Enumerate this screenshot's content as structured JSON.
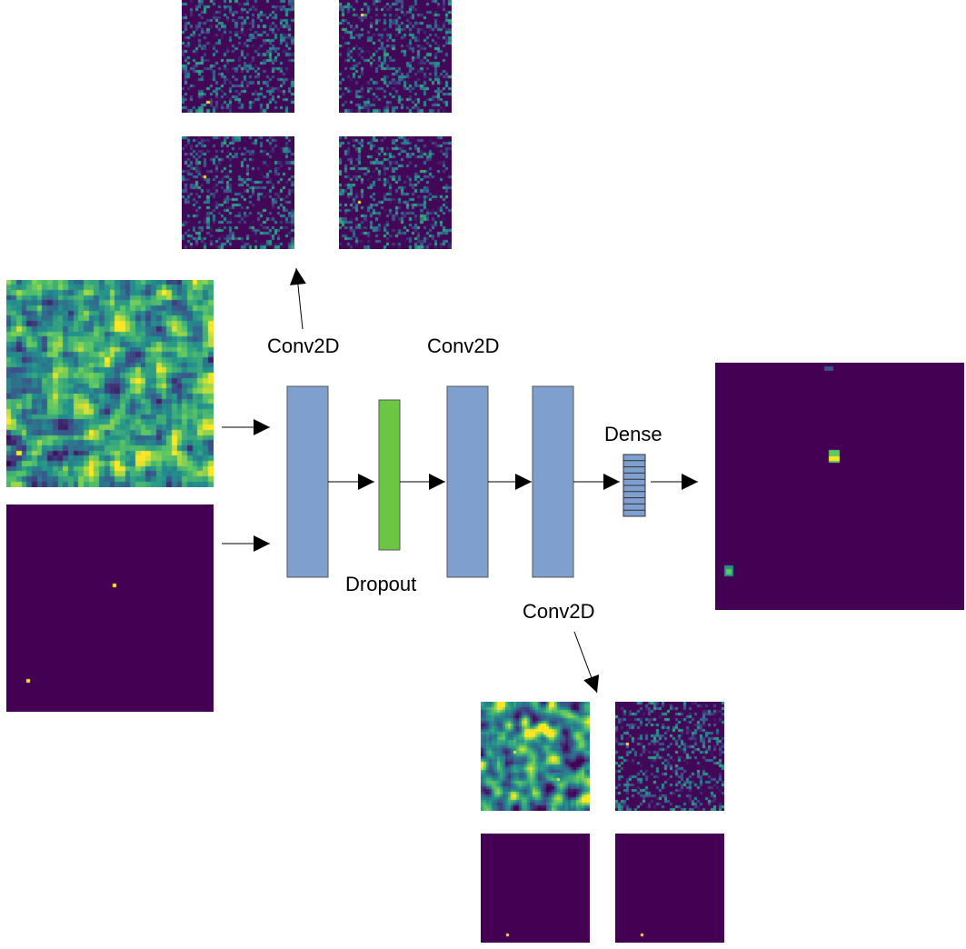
{
  "colors": {
    "map_low": "#440154",
    "map_mid": "#31688e",
    "map_teal": "#35b779",
    "map_high": "#fde725",
    "conv_block": "#7f9fcf",
    "dropout_block": "#6cc644",
    "dense_block": "#7f9fcf",
    "block_border": "#555555",
    "arrow": "#000000"
  },
  "labels": {
    "conv1": "Conv2D",
    "conv2": "Conv2D",
    "conv3": "Conv2D",
    "dropout": "Dropout",
    "dense": "Dense"
  },
  "feature_maps": {
    "input_field": {
      "style": "field"
    },
    "input_points": {
      "style": "points"
    },
    "output": {
      "style": "output"
    },
    "conv1_outputs": [
      {
        "style": "sparse"
      },
      {
        "style": "sparse"
      },
      {
        "style": "sparse"
      },
      {
        "style": "sparse"
      }
    ],
    "conv3_outputs": [
      {
        "style": "blobs"
      },
      {
        "style": "sparse"
      },
      {
        "style": "empty"
      },
      {
        "style": "empty"
      }
    ]
  }
}
